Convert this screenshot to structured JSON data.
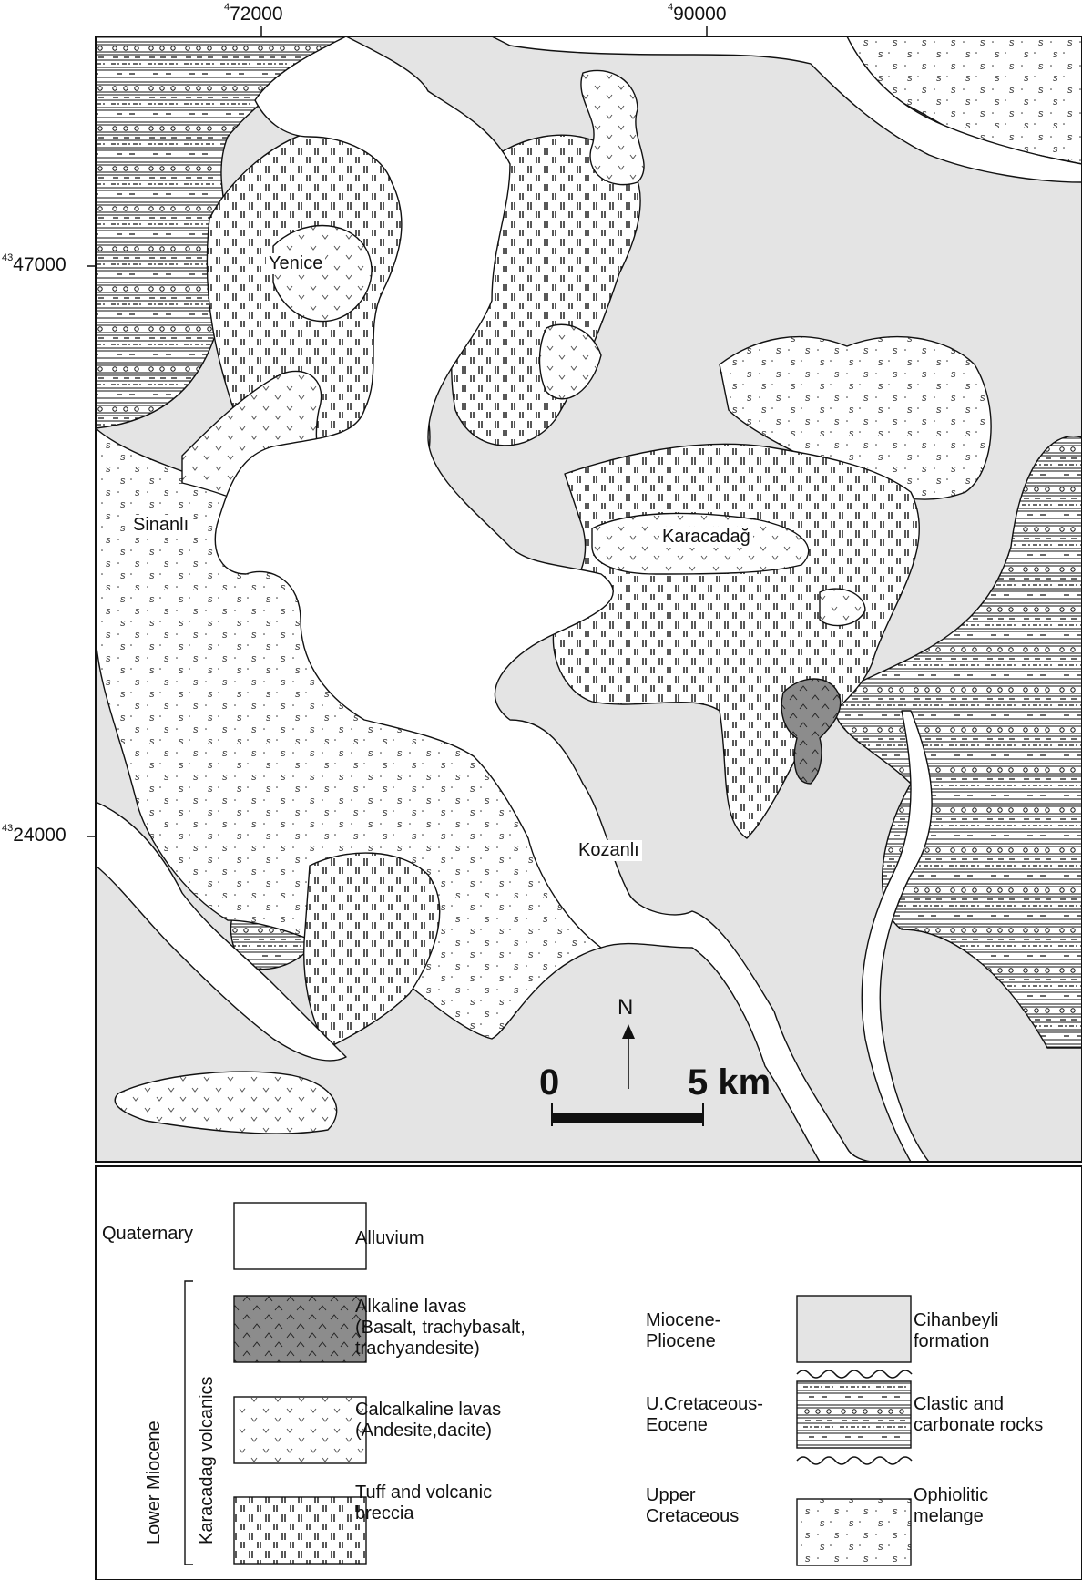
{
  "map": {
    "coords": {
      "x1": {
        "exp": "4",
        "val": "72000"
      },
      "x2": {
        "exp": "4",
        "val": "90000"
      },
      "y1": {
        "exp": "43",
        "val": "47000"
      },
      "y2": {
        "exp": "43",
        "val": "24000"
      }
    },
    "places": {
      "yenice": "Yenice",
      "sinanli": "Sinanlı",
      "karacadag": "Karacadağ",
      "kozanli": "Kozanlı"
    },
    "north": "N",
    "scale": {
      "start": "0",
      "end": "5 km"
    }
  },
  "legend": {
    "quaternary": "Quaternary",
    "alluvium": "Alluvium",
    "lower_miocene": "Lower Miocene",
    "karacadag_volcanics": "Karacadag volcanics",
    "alkaline": [
      "Alkaline lavas",
      "(Basalt, trachybasalt,",
      "trachyandesite)"
    ],
    "calcalkaline": [
      "Calcalkaline lavas",
      "(Andesite,dacite)"
    ],
    "tuff": [
      "Tuff and volcanic",
      "breccia"
    ],
    "miocene_pliocene": [
      "Miocene-",
      "Pliocene"
    ],
    "cihanbeyli": [
      "Cihanbeyli",
      "formation"
    ],
    "ucret_eocene": [
      "U.Cretaceous-",
      "Eocene"
    ],
    "clastic": [
      "Clastic and",
      "carbonate rocks"
    ],
    "upper_cretaceous": [
      "Upper",
      "Cretaceous"
    ],
    "ophiolitic": [
      "Ophiolitic",
      "melange"
    ]
  },
  "colors": {
    "cihanbeyli": "#e4e4e4",
    "alkaline": "#8c8c8c",
    "outline": "#111111"
  }
}
